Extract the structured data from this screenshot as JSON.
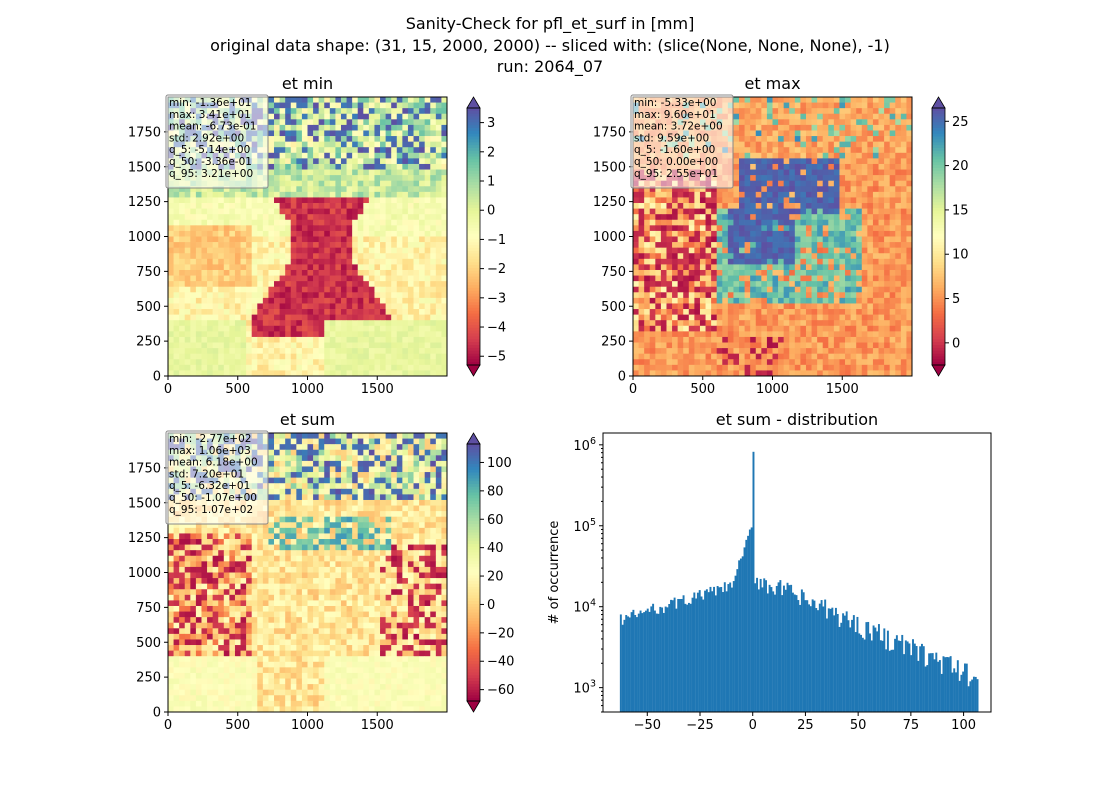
{
  "figure": {
    "title_lines": [
      "Sanity-Check for pfl_et_surf in [mm]",
      "original data shape: (31, 15, 2000, 2000) -- sliced with: (slice(None, None, None), -1)",
      "run: 2064_07"
    ]
  },
  "chart_data": [
    {
      "type": "heatmap",
      "title": "et min",
      "xlim": [
        0,
        2000
      ],
      "ylim": [
        0,
        2000
      ],
      "xticks": [
        0,
        500,
        1000,
        1500
      ],
      "yticks": [
        0,
        250,
        500,
        750,
        1000,
        1250,
        1500,
        1750
      ],
      "colormap": "Spectral",
      "colorbar": {
        "range": [
          -5.3,
          3.5
        ],
        "ticks": [
          3,
          2,
          1,
          0,
          -1,
          -2,
          -3,
          -4,
          -5
        ],
        "tick_labels": [
          "3",
          "2",
          "1",
          "0",
          "−1",
          "−2",
          "−3",
          "−4",
          "−5"
        ],
        "extend": "both"
      },
      "stats": [
        "min: -1.36e+01",
        "max: 3.41e+01",
        "mean: -6.73e-01",
        "std: 2.92e+00",
        "q_5: -5.14e+00",
        "q_50: -3.36e-01",
        "q_95: 3.21e+00"
      ]
    },
    {
      "type": "heatmap",
      "title": "et max",
      "xlim": [
        0,
        2000
      ],
      "ylim": [
        0,
        2000
      ],
      "xticks": [
        0,
        500,
        1000,
        1500
      ],
      "yticks": [
        0,
        250,
        500,
        750,
        1000,
        1250,
        1500,
        1750
      ],
      "colormap": "Spectral",
      "colorbar": {
        "range": [
          -2.5,
          26.5
        ],
        "ticks": [
          25,
          20,
          15,
          10,
          5,
          0
        ],
        "tick_labels": [
          "25",
          "20",
          "15",
          "10",
          "5",
          "0"
        ],
        "extend": "both"
      },
      "stats": [
        "min: -5.33e+00",
        "max: 9.60e+01",
        "mean: 3.72e+00",
        "std: 9.59e+00",
        "q_5: -1.60e+00",
        "q_50: 0.00e+00",
        "q_95: 2.55e+01"
      ]
    },
    {
      "type": "heatmap",
      "title": "et sum",
      "xlim": [
        0,
        2000
      ],
      "ylim": [
        0,
        2000
      ],
      "xticks": [
        0,
        500,
        1000,
        1500
      ],
      "yticks": [
        0,
        250,
        500,
        750,
        1000,
        1250,
        1500,
        1750
      ],
      "colormap": "Spectral",
      "colorbar": {
        "range": [
          -68,
          113
        ],
        "ticks": [
          100,
          80,
          60,
          40,
          20,
          0,
          -20,
          -40,
          -60
        ],
        "tick_labels": [
          "100",
          "80",
          "60",
          "40",
          "20",
          "0",
          "−20",
          "−40",
          "−60"
        ],
        "extend": "both"
      },
      "stats": [
        "min: -2.77e+02",
        "max: 1.06e+03",
        "mean: 6.18e+00",
        "std: 7.20e+01",
        "q_5: -6.32e+01",
        "q_50: -1.07e+00",
        "q_95: 1.07e+02"
      ]
    },
    {
      "type": "bar",
      "title": "et sum - distribution",
      "ylabel": "# of occurrence",
      "yscale": "log",
      "xlim": [
        -71,
        113
      ],
      "ylim": [
        500,
        1400000
      ],
      "xticks": [
        -50,
        -25,
        0,
        25,
        50,
        75,
        100
      ],
      "xtick_labels": [
        "−50",
        "−25",
        "0",
        "25",
        "50",
        "75",
        "100"
      ],
      "yticks": [
        1000,
        10000,
        100000,
        1000000
      ],
      "bin_range": [
        -63,
        107
      ],
      "peak": {
        "x": 0,
        "y": 820000
      },
      "color": "#1f77b4"
    }
  ]
}
